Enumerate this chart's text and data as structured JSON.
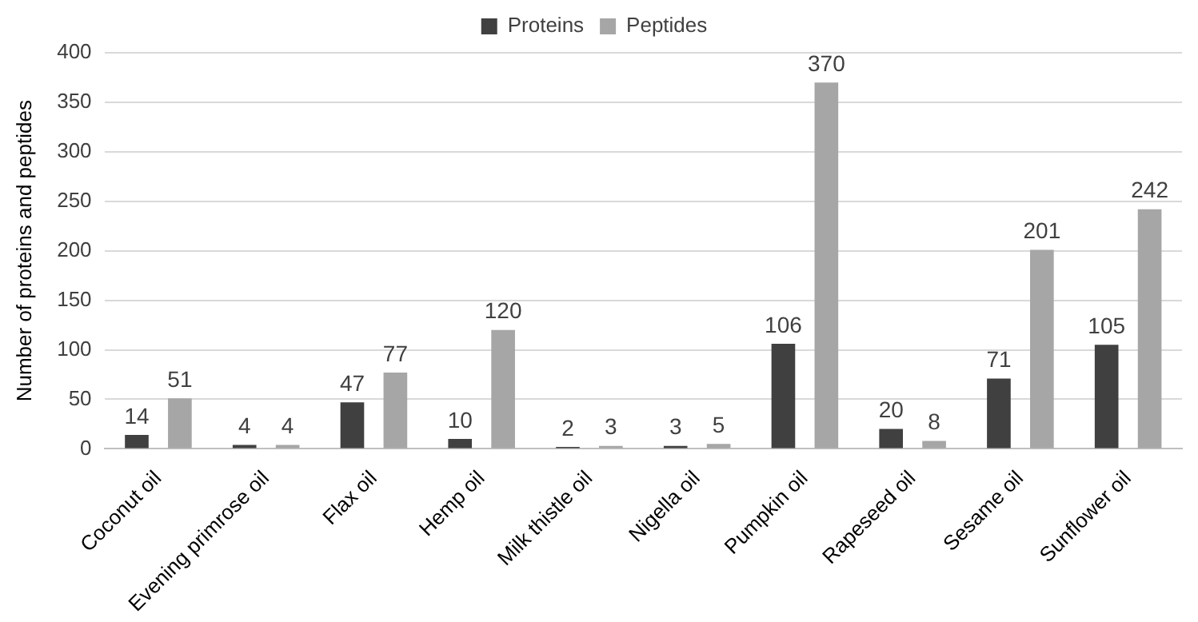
{
  "chart_data": {
    "type": "bar",
    "ylabel": "Number of proteins and peptides",
    "categories": [
      "Coconut oil",
      "Evening primrose oil",
      "Flax oil",
      "Hemp oil",
      "Milk thistle oil",
      "Nigella oil",
      "Pumpkin oil",
      "Rapeseed oil",
      "Sesame oil",
      "Sunflower oil"
    ],
    "series": [
      {
        "name": "Proteins",
        "color": "#404040",
        "values": [
          14,
          4,
          47,
          10,
          2,
          3,
          106,
          20,
          71,
          105
        ]
      },
      {
        "name": "Peptides",
        "color": "#a6a6a6",
        "values": [
          51,
          4,
          77,
          120,
          3,
          5,
          370,
          8,
          201,
          242
        ]
      }
    ],
    "ylim": [
      0,
      400
    ],
    "yticks": [
      0,
      50,
      100,
      150,
      200,
      250,
      300,
      350,
      400
    ],
    "grid": "y",
    "legend": "top",
    "data_labels": true
  }
}
